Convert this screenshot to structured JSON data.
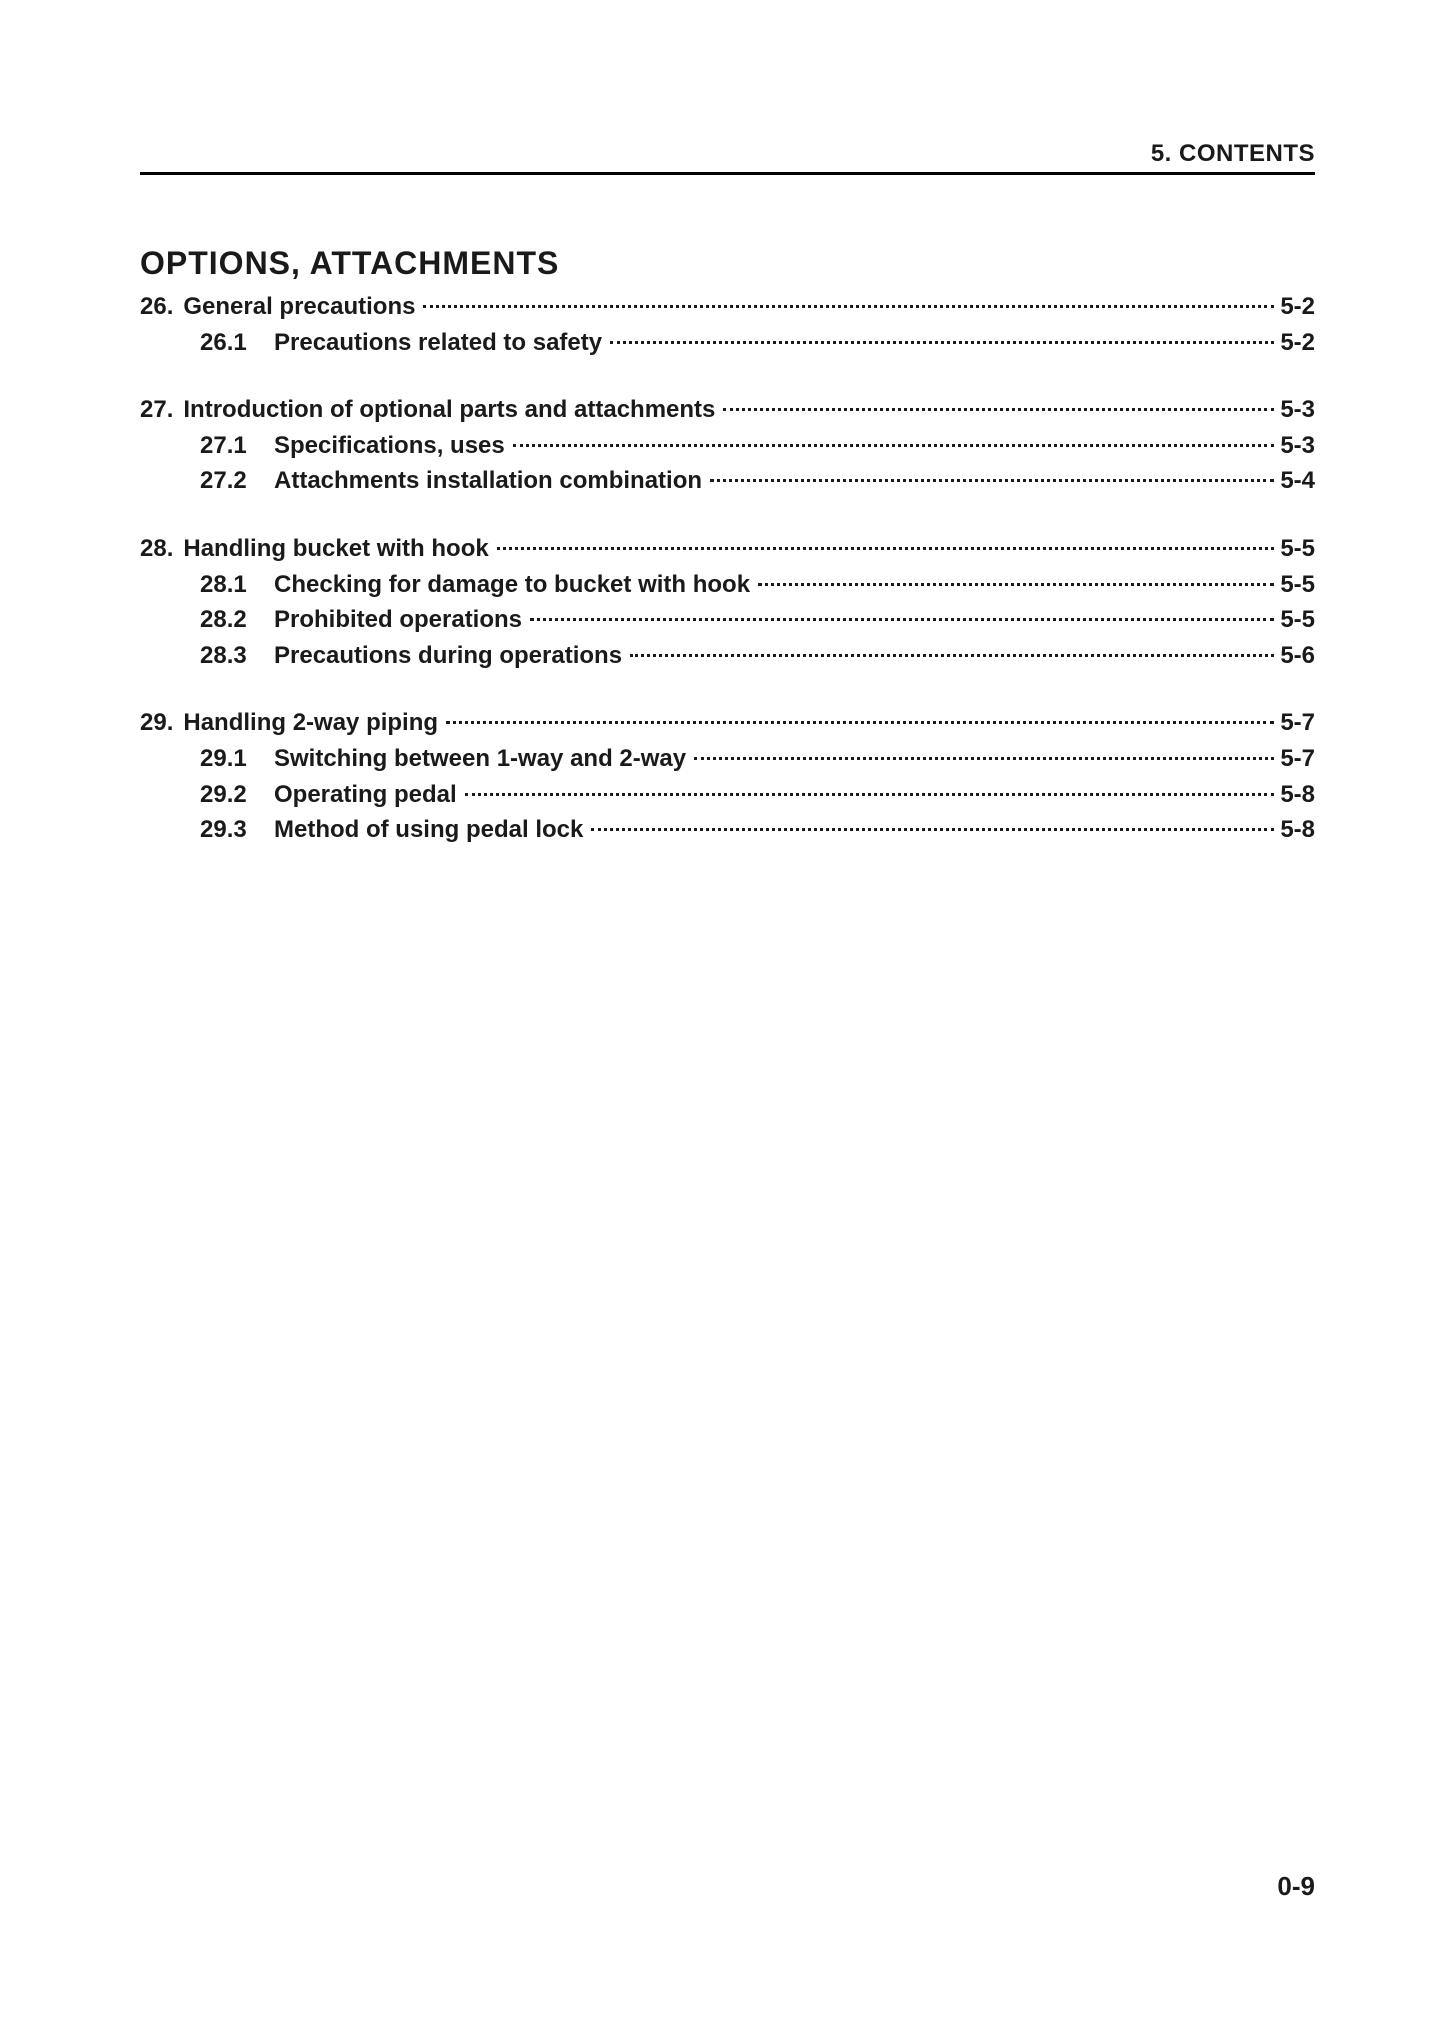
{
  "header": {
    "label": "5. CONTENTS"
  },
  "section_title": "OPTIONS, ATTACHMENTS",
  "page_number": "0-9",
  "groups": [
    {
      "chapter_num": "26.",
      "chapter_title": "General precautions",
      "chapter_page": "5-2",
      "subs": [
        {
          "num": "26.1",
          "title": "Precautions related to safety",
          "page": "5-2"
        }
      ]
    },
    {
      "chapter_num": "27.",
      "chapter_title": "Introduction of optional parts and attachments",
      "chapter_page": "5-3",
      "subs": [
        {
          "num": "27.1",
          "title": "Specifications, uses",
          "page": "5-3"
        },
        {
          "num": "27.2",
          "title": "Attachments installation combination",
          "page": "5-4"
        }
      ]
    },
    {
      "chapter_num": "28.",
      "chapter_title": "Handling bucket with hook",
      "chapter_page": "5-5",
      "subs": [
        {
          "num": "28.1",
          "title": "Checking for damage to bucket with hook",
          "page": "5-5"
        },
        {
          "num": "28.2",
          "title": "Prohibited operations",
          "page": "5-5"
        },
        {
          "num": "28.3",
          "title": "Precautions during operations",
          "page": "5-6"
        }
      ]
    },
    {
      "chapter_num": "29.",
      "chapter_title": "Handling 2-way piping",
      "chapter_page": "5-7",
      "subs": [
        {
          "num": "29.1",
          "title": "Switching between 1-way and 2-way",
          "page": "5-7"
        },
        {
          "num": "29.2",
          "title": "Operating pedal",
          "page": "5-8"
        },
        {
          "num": "29.3",
          "title": "Method of using pedal lock",
          "page": "5-8"
        }
      ]
    }
  ]
}
